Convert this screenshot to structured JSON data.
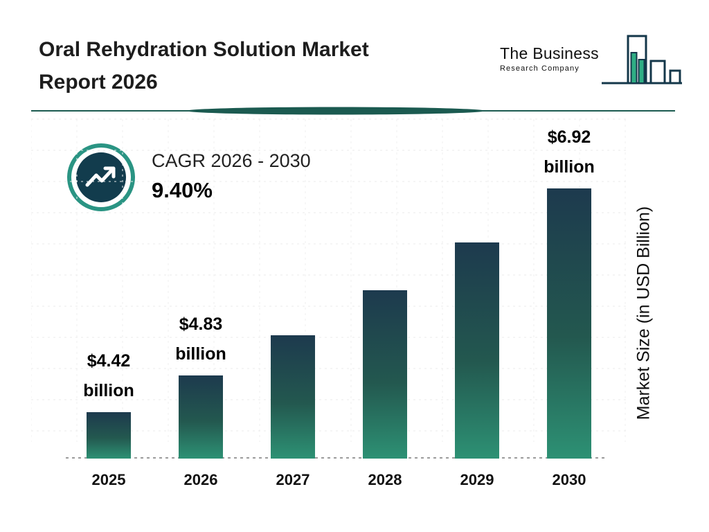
{
  "header": {
    "title_line1": "Oral Rehydration Solution Market",
    "title_line2": "Report 2026"
  },
  "logo": {
    "name": "The Business",
    "subname": "Research Company"
  },
  "cagr": {
    "label": "CAGR 2026 - 2030",
    "value": "9.40%"
  },
  "chart_data": {
    "type": "bar",
    "title": "Oral Rehydration Solution Market Report 2026",
    "ylabel": "Market Size (in USD Billion)",
    "categories": [
      "2025",
      "2026",
      "2027",
      "2028",
      "2029",
      "2030"
    ],
    "values": [
      4.42,
      4.83,
      5.28,
      5.78,
      6.32,
      6.92
    ],
    "ylim": [
      3.9,
      7.0
    ],
    "grid": true,
    "legend": false,
    "bars": [
      {
        "year": "2025",
        "value": 4.42,
        "label_line1": "$4.42",
        "label_line2": "billion"
      },
      {
        "year": "2026",
        "value": 4.83,
        "label_line1": "$4.83",
        "label_line2": "billion"
      },
      {
        "year": "2027",
        "value": 5.28,
        "label_line1": "",
        "label_line2": ""
      },
      {
        "year": "2028",
        "value": 5.78,
        "label_line1": "",
        "label_line2": ""
      },
      {
        "year": "2029",
        "value": 6.32,
        "label_line1": "",
        "label_line2": ""
      },
      {
        "year": "2030",
        "value": 6.92,
        "label_line1": "$6.92",
        "label_line2": "billion"
      }
    ],
    "colors": {
      "bar_gradient_top": "#1d3a4e",
      "bar_gradient_bottom": "#2d9174",
      "accent_teal": "#1b5a50",
      "badge_ring": "#2a9483",
      "badge_fill": "#123c4d",
      "logo_green": "#2fae84"
    }
  }
}
